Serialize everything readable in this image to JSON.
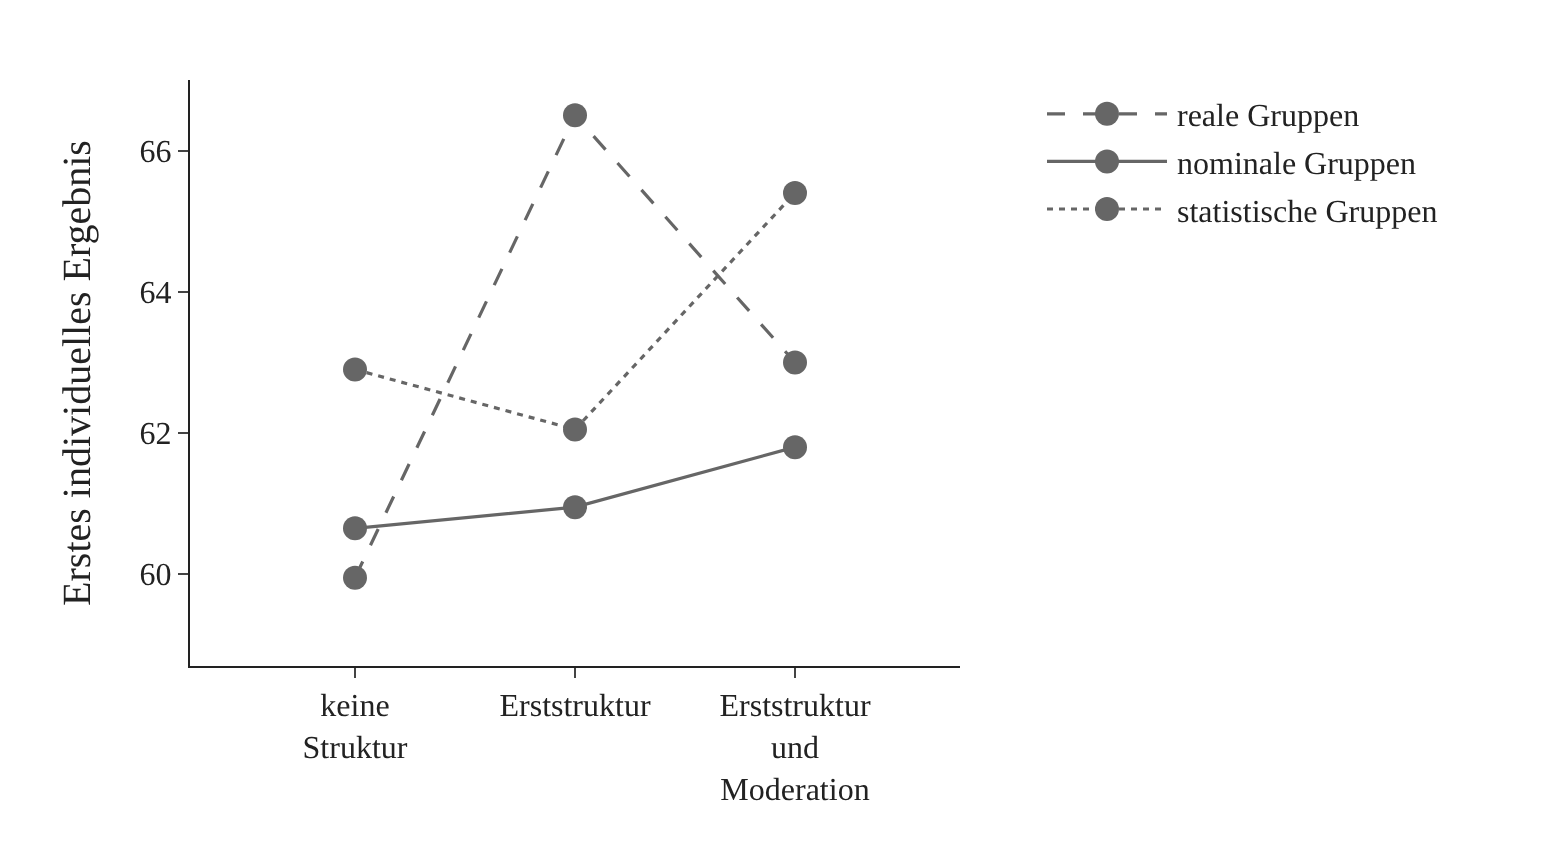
{
  "chart_data": {
    "type": "line",
    "ylabel": "Erstes individuelles Ergebnis",
    "categories": [
      "keine\nStruktur",
      "Erststruktur",
      "Erststruktur\nund\nModeration"
    ],
    "series": [
      {
        "name": "reale Gruppen",
        "color": "#666666",
        "line_style": "dashed",
        "values": [
          59.95,
          66.5,
          63.0
        ]
      },
      {
        "name": "nominale Gruppen",
        "color": "#666666",
        "line_style": "solid",
        "values": [
          60.65,
          60.95,
          61.8
        ]
      },
      {
        "name": "statistische Gruppen",
        "color": "#666666",
        "line_style": "dotted",
        "values": [
          62.9,
          62.05,
          65.4
        ]
      }
    ],
    "ylim": [
      58.7,
      67.0
    ],
    "yticks": [
      60,
      62,
      64,
      66
    ],
    "grid": false,
    "legend": "top right",
    "marker": "circle"
  }
}
